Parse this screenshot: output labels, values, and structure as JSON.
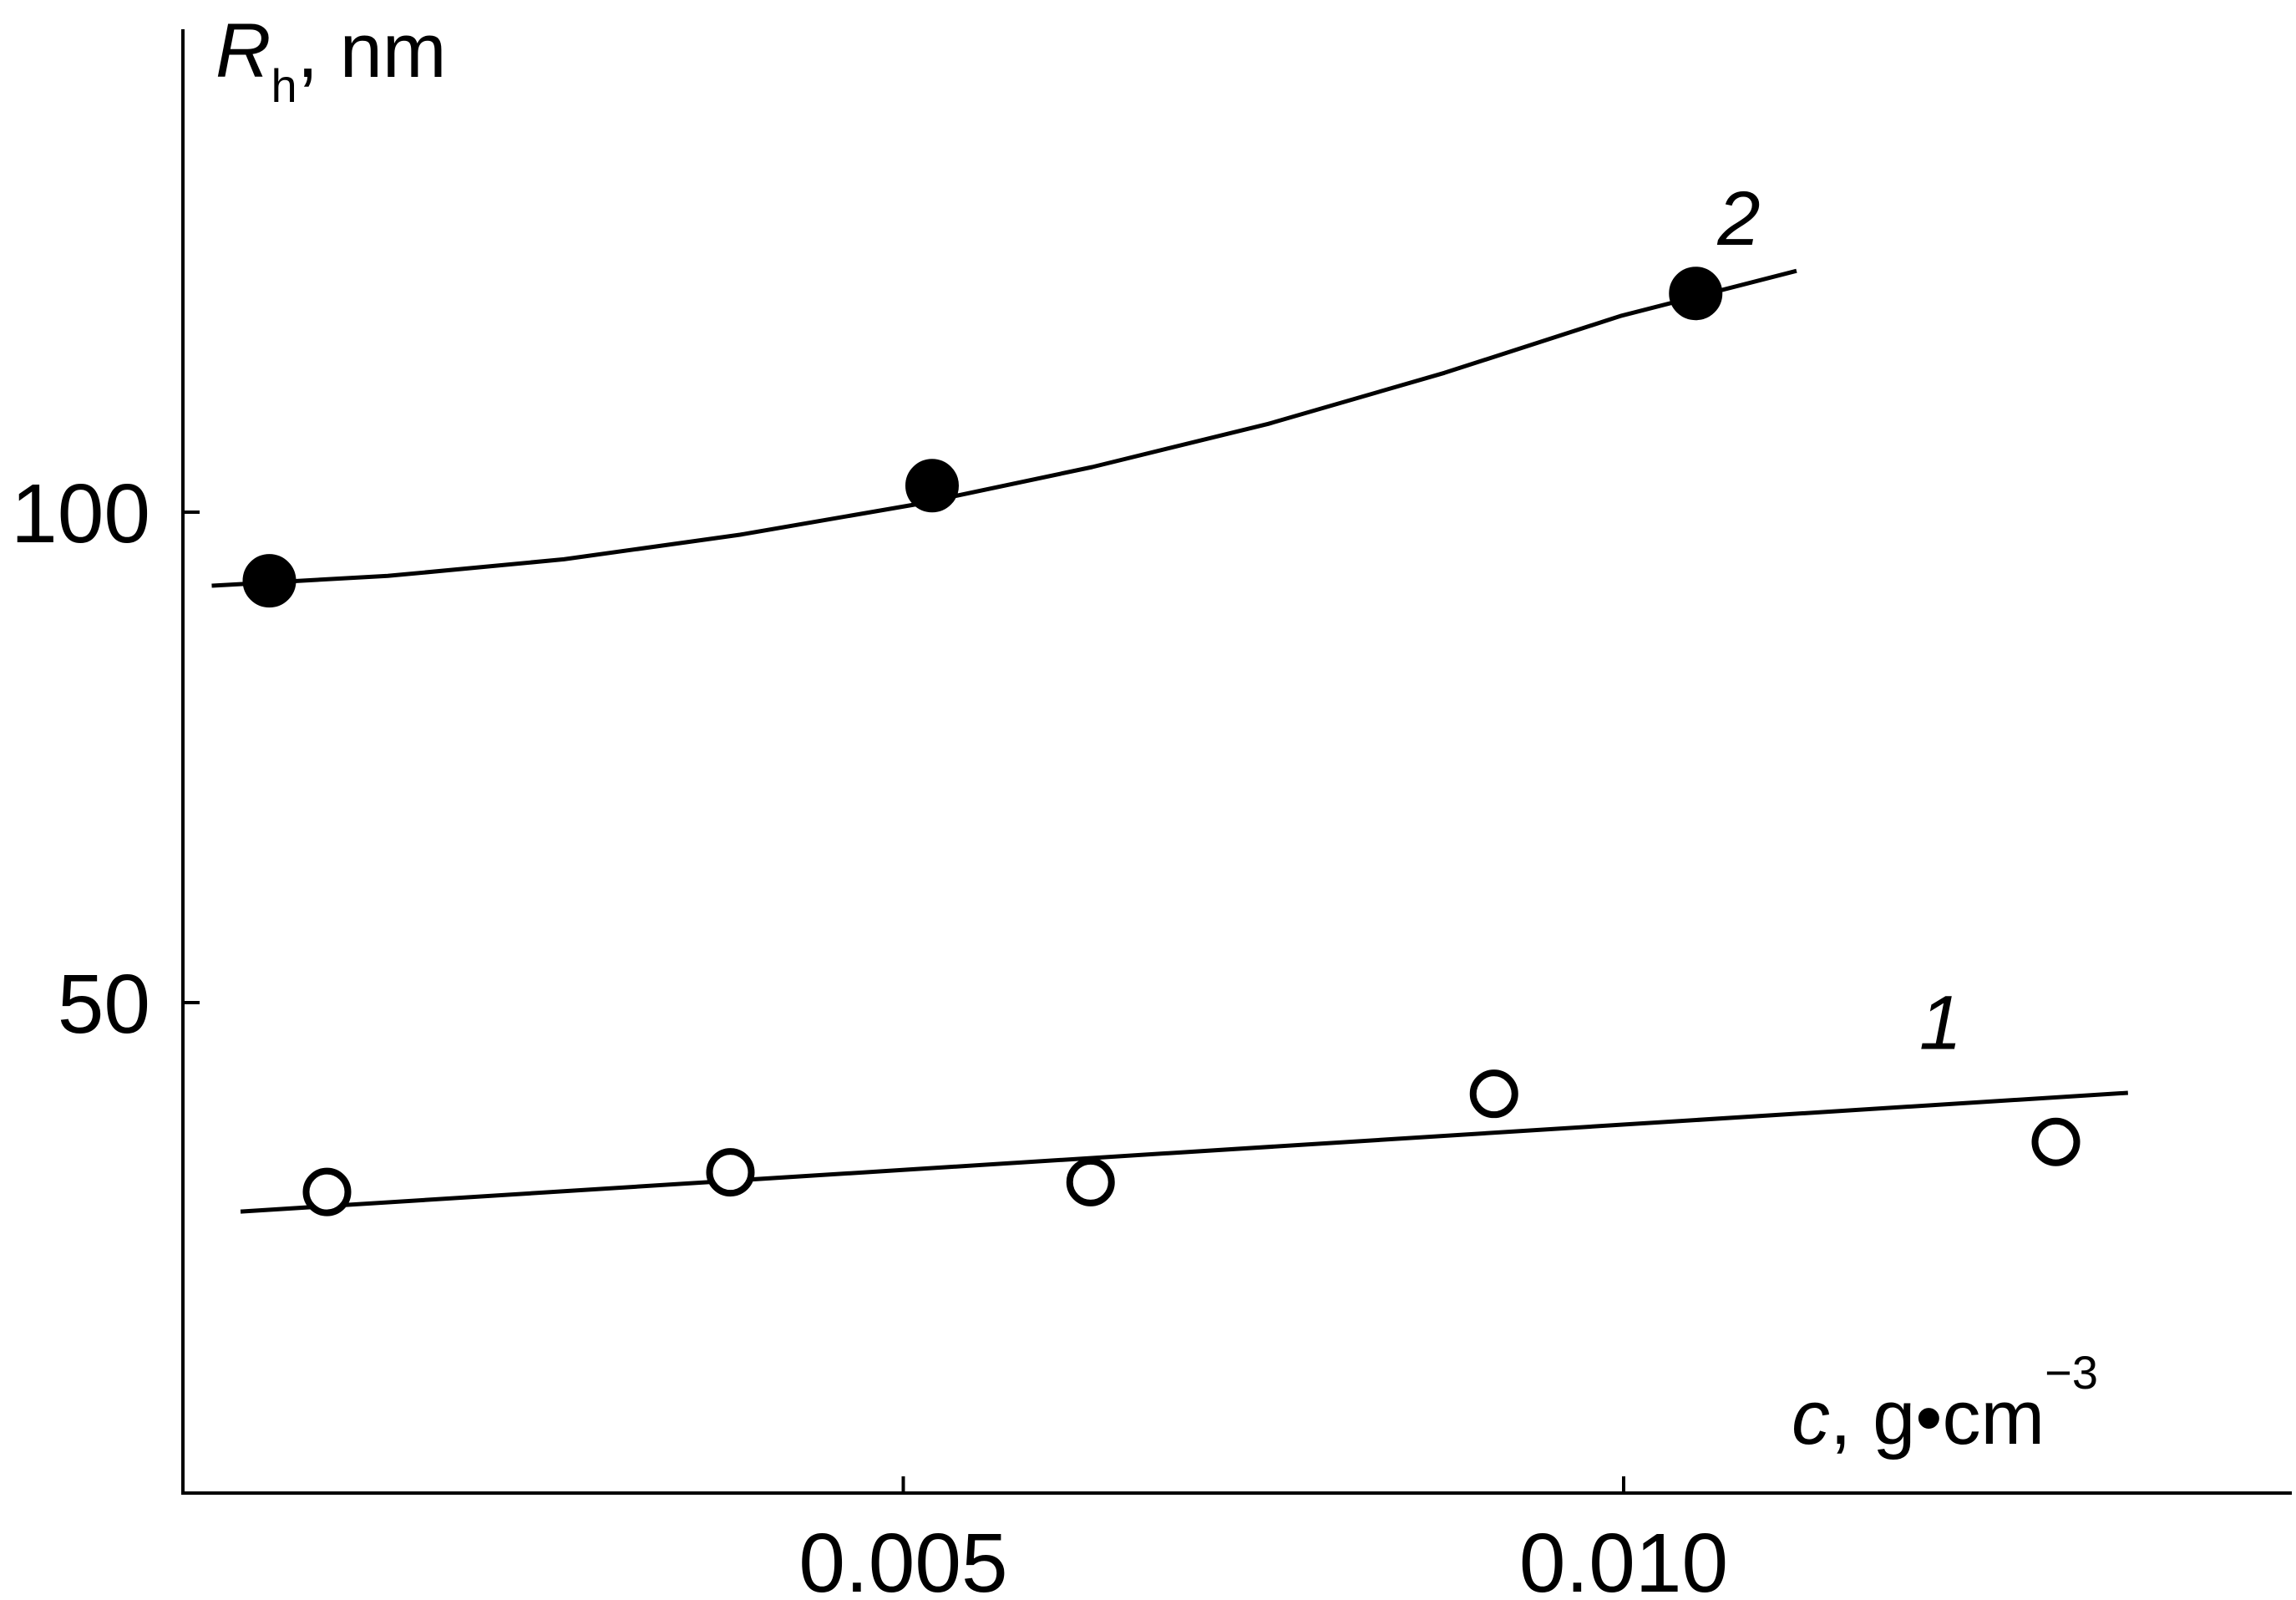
{
  "chart_data": {
    "type": "scatter",
    "title": "",
    "xlabel": {
      "symbol": "c",
      "rest": ", g•cm",
      "sup": "−3"
    },
    "ylabel": {
      "symbol": "R",
      "sub": "h",
      "rest": ", nm"
    },
    "xlim": [
      0.0,
      0.0146
    ],
    "ylim": [
      0.0,
      150.0
    ],
    "x_ticks": [
      {
        "value": 0.005,
        "label": "0.005"
      },
      {
        "value": 0.01,
        "label": "0.010"
      }
    ],
    "y_ticks": [
      {
        "value": 50,
        "label": "50"
      },
      {
        "value": 100,
        "label": "100"
      }
    ],
    "grid": false,
    "series": [
      {
        "name": "1",
        "label_at": {
          "x": 0.0122,
          "y": 48
        },
        "marker": "open-circle",
        "points": [
          {
            "x": 0.001,
            "y": 30.7
          },
          {
            "x": 0.0038,
            "y": 32.7
          },
          {
            "x": 0.0063,
            "y": 31.7
          },
          {
            "x": 0.0091,
            "y": 40.7
          },
          {
            "x": 0.013,
            "y": 35.8
          }
        ],
        "fit": {
          "kind": "line",
          "from": 0.0004,
          "to": 0.0135,
          "y0": 28.7,
          "y1": 40.8
        }
      },
      {
        "name": "2",
        "label_at": {
          "x": 0.0108,
          "y": 130
        },
        "marker": "filled-circle",
        "points": [
          {
            "x": 0.0006,
            "y": 93.0
          },
          {
            "x": 0.0052,
            "y": 102.7
          },
          {
            "x": 0.0105,
            "y": 122.3
          }
        ],
        "fit": {
          "kind": "curve",
          "from": 0.0002,
          "to": 0.0112,
          "y": [
            92.5,
            93.5,
            95.2,
            97.7,
            100.8,
            104.6,
            109.0,
            114.2,
            120.0,
            124.6
          ]
        }
      }
    ]
  }
}
